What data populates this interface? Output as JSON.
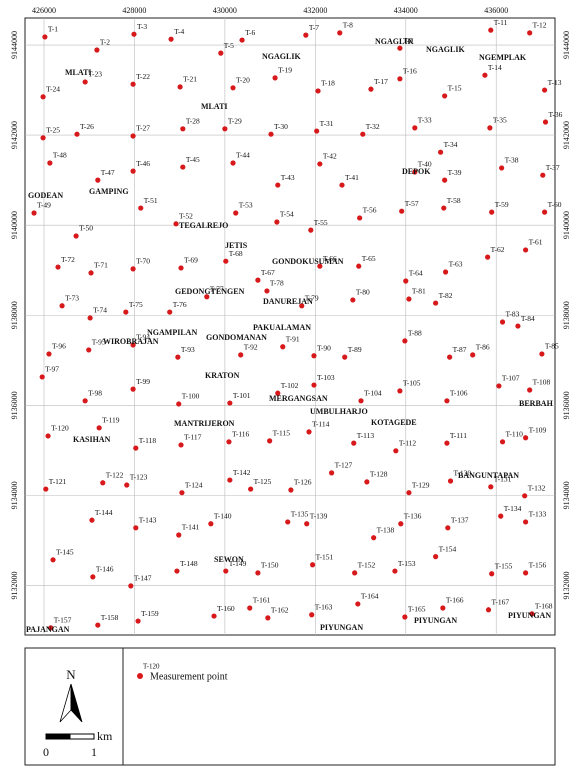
{
  "chart_data": {
    "type": "scatter",
    "xlim": [
      425580,
      437300
    ],
    "ylim": [
      9130900,
      9144600
    ],
    "xticks": [
      426000,
      428000,
      430000,
      432000,
      434000,
      436000
    ],
    "yticks": [
      9132000,
      9134000,
      9136000,
      9138000,
      9140000,
      9142000,
      9144000
    ],
    "grid": true,
    "series": [
      {
        "name": "Measurement point",
        "color": "#d7191c",
        "labels": [
          "T-1",
          "T-2",
          "T-3",
          "T-4",
          "T-5",
          "T-6",
          "T-7",
          "T-8",
          "T-9",
          "T-11",
          "T-12",
          "T-13",
          "T-14",
          "T-15",
          "T-16",
          "T-17",
          "T-18",
          "T-19",
          "T-20",
          "T-21",
          "T-22",
          "T-23",
          "T-24",
          "T-25",
          "T-26",
          "T-27",
          "T-28",
          "T-29",
          "T-30",
          "T-31",
          "T-32",
          "T-33",
          "T-34",
          "T-35",
          "T-36",
          "T-37",
          "T-38",
          "T-39",
          "T-40",
          "T-41",
          "T-42",
          "T-43",
          "T-44",
          "T-45",
          "T-46",
          "T-47",
          "T-48",
          "T-49",
          "T-50",
          "T-51",
          "T-52",
          "T-53",
          "T-54",
          "T-55",
          "T-56",
          "T-57",
          "T-58",
          "T-59",
          "T-60",
          "T-61",
          "T-62",
          "T-63",
          "T-64",
          "T-65",
          "T-66",
          "T-67",
          "T-68",
          "T-69",
          "T-70",
          "T-71",
          "T-72",
          "T-73",
          "T-74",
          "T-75",
          "T-76",
          "T-77",
          "T-78",
          "T-79",
          "T-80",
          "T-81",
          "T-82",
          "T-83",
          "T-84",
          "T-85",
          "T-86",
          "T-87",
          "T-88",
          "T-89",
          "T-90",
          "T-91",
          "T-92",
          "T-93",
          "T-94",
          "T-95",
          "T-96",
          "T-97",
          "T-98",
          "T-99",
          "T-100",
          "T-101",
          "T-102",
          "T-103",
          "T-104",
          "T-105",
          "T-106",
          "T-107",
          "T-108",
          "T-109",
          "T-110",
          "T-111",
          "T-112",
          "T-113",
          "T-114",
          "T-115",
          "T-116",
          "T-117",
          "T-118",
          "T-119",
          "T-120",
          "T-121",
          "T-122",
          "T-123",
          "T-124",
          "T-125",
          "T-126",
          "T-127",
          "T-128",
          "T-129",
          "T-130",
          "T-131",
          "T-132",
          "T-133",
          "T-134",
          "T-135",
          "T-136",
          "T-137",
          "T-138",
          "T-139",
          "T-140",
          "T-141",
          "T-142",
          "T-143",
          "T-144",
          "T-145",
          "T-146",
          "T-147",
          "T-148",
          "T-149",
          "T-150",
          "T-151",
          "T-152",
          "T-153",
          "T-154",
          "T-155",
          "T-156",
          "T-157",
          "T-158",
          "T-159",
          "T-160",
          "T-161",
          "T-162",
          "T-163",
          "T-164",
          "T-165",
          "T-166",
          "T-167",
          "T-168"
        ],
        "x": [
          426020,
          427170,
          427990,
          428810,
          429910,
          430380,
          431790,
          432540,
          433870,
          435880,
          436740,
          437070,
          435750,
          434860,
          433870,
          433230,
          432060,
          431110,
          430180,
          429010,
          427970,
          426910,
          425980,
          425980,
          426730,
          427970,
          429070,
          430000,
          431020,
          432030,
          433050,
          434200,
          434770,
          435860,
          437090,
          437030,
          436120,
          434860,
          434200,
          432590,
          432100,
          431170,
          430180,
          429070,
          427970,
          427190,
          426130,
          425780,
          426710,
          428140,
          428920,
          430240,
          431150,
          431900,
          432980,
          433910,
          434840,
          435900,
          437070,
          436650,
          435810,
          434880,
          434000,
          432960,
          432100,
          430730,
          430020,
          429030,
          427970,
          427040,
          426310,
          426400,
          427020,
          427810,
          428780,
          429600,
          430930,
          431700,
          432830,
          434070,
          434660,
          436140,
          436480,
          437010,
          435480,
          434970,
          433980,
          432650,
          431970,
          431280,
          430350,
          428960,
          427970,
          426990,
          426110,
          425960,
          426910,
          427970,
          428980,
          430110,
          431170,
          431970,
          433010,
          433870,
          434910,
          436060,
          436740,
          436650,
          436140,
          434910,
          433780,
          432850,
          431860,
          430990,
          430090,
          429030,
          428030,
          427220,
          426090,
          426040,
          427300,
          427830,
          429050,
          430570,
          431460,
          432360,
          433140,
          434070,
          434990,
          435880,
          436630,
          436650,
          436100,
          431390,
          433890,
          434930,
          433290,
          431810,
          429690,
          428980,
          430110,
          428030,
          427060,
          426200,
          427080,
          427920,
          428940,
          430020,
          430730,
          431940,
          432870,
          433760,
          434660,
          435900,
          436650,
          426150,
          427190,
          428080,
          429760,
          430550,
          430950,
          431920,
          432940,
          433980,
          434820,
          435830,
          436790
        ],
        "y": [
          9144180,
          9143890,
          9144240,
          9144130,
          9143820,
          9144110,
          9144220,
          9144270,
          9143930,
          9144330,
          9144270,
          9143000,
          9143330,
          9142870,
          9143250,
          9143020,
          9142980,
          9143270,
          9143050,
          9143070,
          9143130,
          9143180,
          9142850,
          9141940,
          9142020,
          9141980,
          9142140,
          9142140,
          9142020,
          9142090,
          9142020,
          9142160,
          9141620,
          9142160,
          9142290,
          9141110,
          9141270,
          9141000,
          9141180,
          9140890,
          9141360,
          9140890,
          9141380,
          9141290,
          9141200,
          9141000,
          9141380,
          9140270,
          9139760,
          9140380,
          9140030,
          9140270,
          9140070,
          9139890,
          9140160,
          9140310,
          9140380,
          9140290,
          9140290,
          9139450,
          9139290,
          9138960,
          9138760,
          9139090,
          9139090,
          9138780,
          9139200,
          9139050,
          9139030,
          9138940,
          9139070,
          9138210,
          9137940,
          9138070,
          9138070,
          9138410,
          9138540,
          9138210,
          9138340,
          9138360,
          9138270,
          9137850,
          9137760,
          9137140,
          9137120,
          9137070,
          9137430,
          9137070,
          9137100,
          9137300,
          9137120,
          9137070,
          9137340,
          9137230,
          9137140,
          9136630,
          9136100,
          9136360,
          9136030,
          9136050,
          9136270,
          9136450,
          9136100,
          9136320,
          9136100,
          9136430,
          9136340,
          9135280,
          9135190,
          9135160,
          9134990,
          9135160,
          9135410,
          9135210,
          9135190,
          9135120,
          9135050,
          9135500,
          9135320,
          9134140,
          9134280,
          9134230,
          9134060,
          9134140,
          9134120,
          9134500,
          9134300,
          9134060,
          9134320,
          9134190,
          9133990,
          9133410,
          9133540,
          9133410,
          9133370,
          9133280,
          9133060,
          9133370,
          9133370,
          9133120,
          9134340,
          9133280,
          9133450,
          9132570,
          9132190,
          9131990,
          9132320,
          9132320,
          9132280,
          9132460,
          9132280,
          9132320,
          9132640,
          9132260,
          9132280,
          9131060,
          9131120,
          9131210,
          9131320,
          9131500,
          9131280,
          9131350,
          9131590,
          9131300,
          9131500,
          9131460,
          9131370
        ]
      }
    ],
    "annotations": [
      "MLATI",
      "NGAGLIK",
      "NGAGLIK",
      "NGAGLIK",
      "NGEMPLAK",
      "MLATI",
      "DEPOK",
      "GAMPING",
      "GODEAN",
      "TEGALREJO",
      "JETIS",
      "GONDOKUSUMAN",
      "GEDONGTENGEN",
      "DANUREJAN",
      "PAKUALAMAN",
      "NGAMPILAN",
      "GONDOMANAN",
      "WIROBRAJAN",
      "KRATON",
      "MERGANGSAN",
      "UMBULHARJO",
      "KOTAGEDE",
      "MANTRIJERON",
      "KASIHAN",
      "BERBAH",
      "BANGUNTAPAN",
      "SEWON",
      "PIYUNGAN",
      "PIYUNGAN",
      "PIYUNGAN",
      "PAJANGAN"
    ],
    "legend_sample": "T-120",
    "north": "N",
    "scale_unit": "km",
    "scale_ticks": [
      0,
      1
    ]
  }
}
